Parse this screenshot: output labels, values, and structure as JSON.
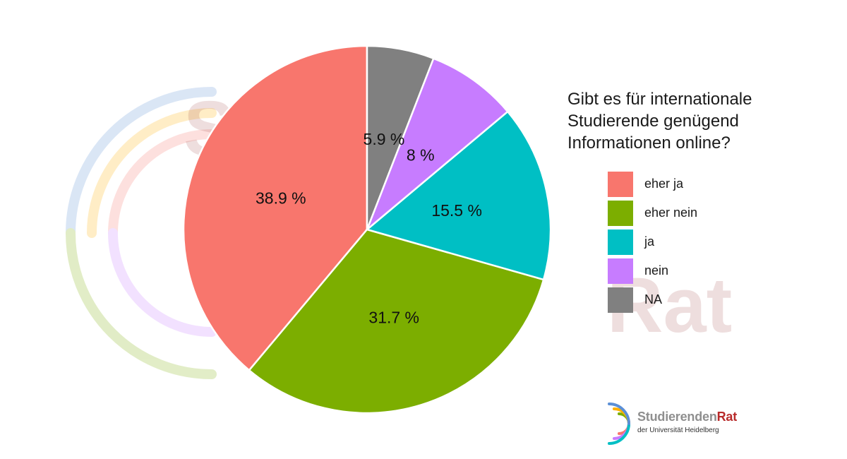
{
  "chart_data": {
    "type": "pie",
    "title": "Gibt es für internationale\nStudierende genügend\nInformationen online?",
    "slices": [
      {
        "name": "eher ja",
        "value": 38.9,
        "label": "38.9 %",
        "color": "#F8766D"
      },
      {
        "name": "eher nein",
        "value": 31.7,
        "label": "31.7 %",
        "color": "#7CAE00"
      },
      {
        "name": "ja",
        "value": 15.5,
        "label": "15.5 %",
        "color": "#00BFC4"
      },
      {
        "name": "nein",
        "value": 8,
        "label": "8 %",
        "color": "#C77CFF"
      },
      {
        "name": "NA",
        "value": 5.9,
        "label": "5.9 %",
        "color": "#808080"
      }
    ],
    "legend_order": [
      "eher ja",
      "eher nein",
      "ja",
      "nein",
      "NA"
    ],
    "legend_placement": "right",
    "direction": "counterclockwise from top"
  },
  "logo": {
    "name_part1": "Studierenden",
    "name_part2": "Rat",
    "subtitle": "der Universität Heidelberg"
  }
}
